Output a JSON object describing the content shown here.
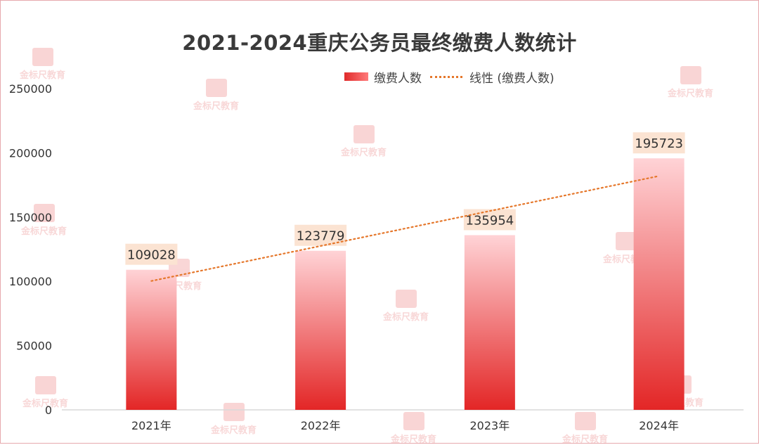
{
  "chart_data": {
    "type": "bar",
    "title": "2021-2024重庆公务员最终缴费人数统计",
    "categories": [
      "2021年",
      "2022年",
      "2023年",
      "2024年"
    ],
    "series": [
      {
        "name": "缴费人数",
        "values": [
          109028,
          123779,
          135954,
          195723
        ]
      },
      {
        "name": "线性 (缴费人数)",
        "type": "linear-trendline"
      }
    ],
    "data_labels": [
      "109028",
      "123779",
      "135954",
      "195723"
    ],
    "y_ticks": [
      "0",
      "50000",
      "100000",
      "150000",
      "200000",
      "250000"
    ],
    "ylim": [
      0,
      250000
    ],
    "grid": false,
    "legend_position": "top-right",
    "colors": {
      "bar_top": "#ffd3d6",
      "bar_bottom": "#e32626",
      "trend": "#e5772b",
      "label_bg": "#fbe3d2"
    }
  },
  "watermark": "金标尺教育"
}
